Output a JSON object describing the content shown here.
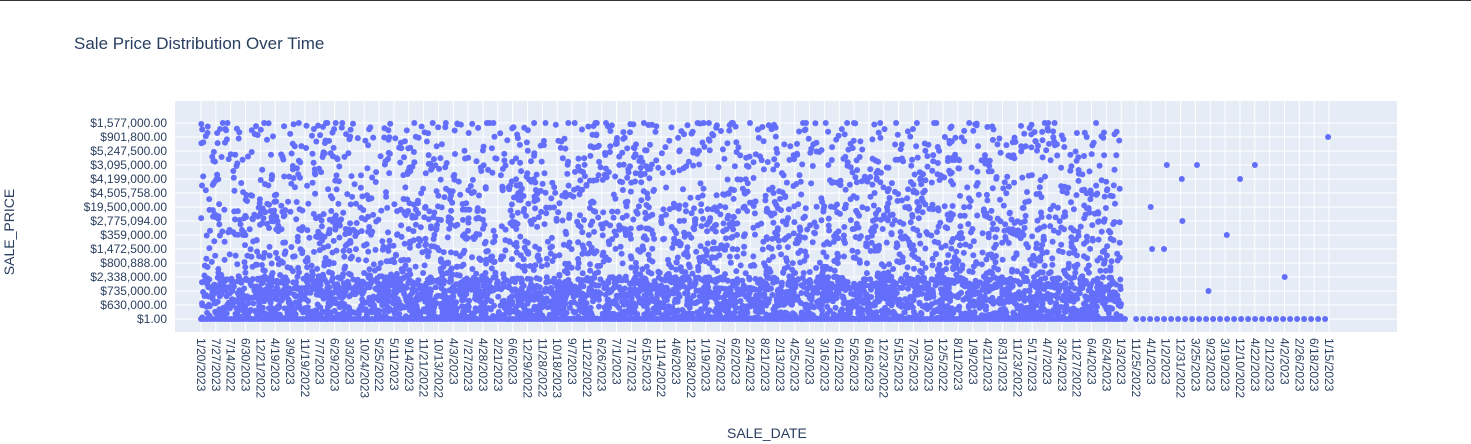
{
  "chart_data": {
    "type": "scatter",
    "title": "Sale Price Distribution Over Time",
    "xlabel": "SALE_DATE",
    "ylabel": "SALE_PRICE",
    "marker_color": "#636efa",
    "plot_bg": "#e5ecf6",
    "grid": true,
    "y_categories": [
      "$1.00",
      "$630,000.00",
      "$735,000.00",
      "$2,338,000.00",
      "$800,888.00",
      "$1,472,500.00",
      "$359,000.00",
      "$2,775,094.00",
      "$19,500,000.00",
      "$4,505,758.00",
      "$4,199,000.00",
      "$3,095,000.00",
      "$5,247,500.00",
      "$901,800.00",
      "$1,577,000.00"
    ],
    "x_tick_labels": [
      "1/20/2023",
      "7/27/2023",
      "7/14/2022",
      "6/30/2023",
      "12/21/2022",
      "4/19/2023",
      "3/9/2023",
      "11/19/2022",
      "7/7/2023",
      "6/29/2023",
      "3/3/2023",
      "10/24/2023",
      "5/25/2022",
      "5/11/2023",
      "9/14/2023",
      "11/21/2022",
      "10/13/2022",
      "4/3/2023",
      "7/27/2023",
      "4/28/2023",
      "2/21/2023",
      "6/6/2023",
      "12/29/2022",
      "11/28/2022",
      "10/18/2023",
      "9/7/2023",
      "11/22/2022",
      "6/26/2023",
      "7/1/2023",
      "7/17/2023",
      "6/15/2023",
      "11/14/2022",
      "4/6/2023",
      "12/28/2022",
      "1/19/2023",
      "7/26/2023",
      "6/2/2023",
      "2/24/2023",
      "8/21/2023",
      "2/13/2023",
      "4/25/2023",
      "3/7/2023",
      "3/16/2023",
      "6/12/2023",
      "5/26/2023",
      "6/16/2023",
      "12/23/2022",
      "5/15/2023",
      "7/25/2023",
      "10/3/2023",
      "12/5/2022",
      "8/11/2023",
      "1/9/2023",
      "4/21/2023",
      "8/31/2023",
      "11/23/2022",
      "5/17/2023",
      "4/7/2023",
      "3/24/2023",
      "11/27/2022",
      "6/4/2023",
      "6/24/2023",
      "1/3/2023",
      "11/25/2022",
      "4/1/2023",
      "1/2/2023",
      "12/31/2022",
      "3/25/2023",
      "9/23/2023",
      "3/19/2023",
      "12/10/2022",
      "4/22/2023",
      "2/12/2023",
      "4/2/2023",
      "2/26/2023",
      "6/18/2023",
      "1/15/2023"
    ],
    "clusters": [
      {
        "x_start": "1/20/2023",
        "x_end": "1/3/2023",
        "density": "dense"
      },
      {
        "x_start": "11/25/2022",
        "x_end": "1/15/2023",
        "density": "sparse"
      }
    ],
    "sparse_points": [
      {
        "x": "4/1/2023",
        "y": "$1,472,500.00"
      },
      {
        "x": "4/1/2023",
        "y": "$19,500,000.00"
      },
      {
        "x": "1/2/2023",
        "y": "$3,095,000.00"
      },
      {
        "x": "1/2/2023",
        "y": "$1,472,500.00"
      },
      {
        "x": "12/31/2022",
        "y": "$4,199,000.00"
      },
      {
        "x": "12/31/2022",
        "y": "$2,775,094.00"
      },
      {
        "x": "3/25/2023",
        "y": "$3,095,000.00"
      },
      {
        "x": "9/23/2023",
        "y": "$735,000.00"
      },
      {
        "x": "3/19/2023",
        "y": "$359,000.00"
      },
      {
        "x": "12/10/2022",
        "y": "$4,199,000.00"
      },
      {
        "x": "4/22/2023",
        "y": "$3,095,000.00"
      },
      {
        "x": "4/2/2023",
        "y": "$2,338,000.00"
      },
      {
        "x": "1/15/2023",
        "y": "$901,800.00"
      }
    ]
  }
}
